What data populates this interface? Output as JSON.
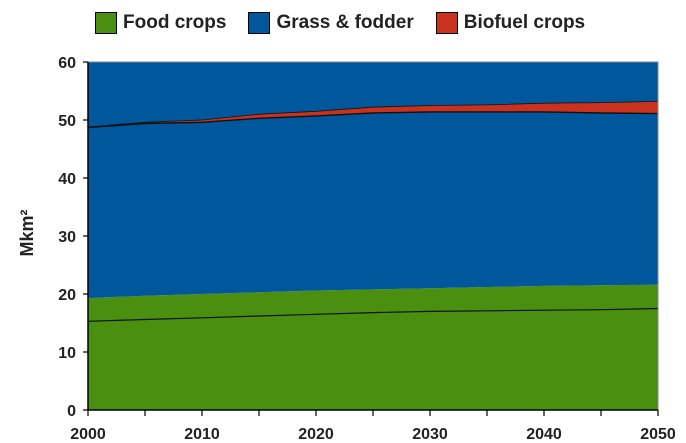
{
  "colors": {
    "food": "#4a8f10",
    "grass": "#00579c",
    "biofuel": "#c8321e"
  },
  "chart_data": {
    "type": "area",
    "stacked": true,
    "x": [
      2000,
      2005,
      2010,
      2015,
      2020,
      2025,
      2030,
      2035,
      2040,
      2045,
      2050
    ],
    "xlim": [
      2000,
      2050
    ],
    "ylim": [
      0,
      60
    ],
    "xticks": [
      2000,
      2010,
      2020,
      2030,
      2040,
      2050
    ],
    "yticks": [
      0,
      10,
      20,
      30,
      40,
      50,
      60
    ],
    "xlabel": "",
    "ylabel": "Mkm²",
    "legend": "top",
    "series": [
      {
        "name": "Food crops",
        "color_key": "food",
        "values": [
          19.3,
          19.7,
          20.0,
          20.3,
          20.6,
          20.8,
          21.0,
          21.2,
          21.4,
          21.5,
          21.6
        ]
      },
      {
        "name": "Grass & fodder",
        "color_key": "grass",
        "values": [
          29.4,
          29.7,
          29.6,
          30.0,
          30.1,
          30.4,
          30.4,
          30.2,
          30.0,
          29.7,
          29.5
        ]
      },
      {
        "name": "Biofuel crops",
        "color_key": "biofuel",
        "values": [
          0.1,
          0.2,
          0.4,
          0.7,
          0.8,
          1.0,
          1.1,
          1.2,
          1.5,
          1.8,
          2.1
        ]
      }
    ],
    "inner_line": {
      "values": [
        15.3,
        15.6,
        15.9,
        16.2,
        16.5,
        16.8,
        17.0,
        17.1,
        17.2,
        17.3,
        17.5
      ]
    }
  }
}
